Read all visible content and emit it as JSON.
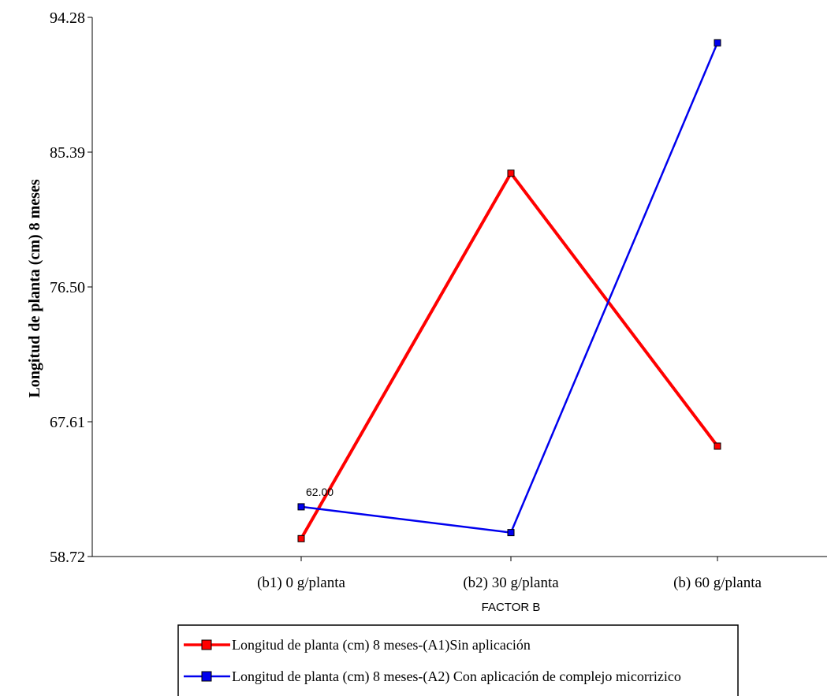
{
  "chart_data": {
    "type": "line",
    "xlabel": "FACTOR B",
    "ylabel": "Longitud de planta (cm) 8 meses",
    "categories": [
      "(b1) 0 g/planta",
      "(b2) 30 g/planta",
      "(b) 60 g/planta"
    ],
    "ylim": [
      58.72,
      94.28
    ],
    "yticks": [
      "94.28",
      "85.39",
      "76.50",
      "67.61",
      "58.72"
    ],
    "grid": false,
    "legend_position": "bottom",
    "series": [
      {
        "name": "Longitud de planta (cm) 8 meses-(A1)Sin aplicación",
        "color": "#ff0000",
        "values": [
          59.9,
          84.0,
          66.0
        ]
      },
      {
        "name": "Longitud de planta (cm) 8 meses-(A2) Con aplicación de complejo micorrizico",
        "color": "#0000ee",
        "values": [
          62.0,
          60.3,
          92.6
        ]
      }
    ],
    "annotations": [
      {
        "series": 1,
        "point": 0,
        "text": "62.00"
      }
    ]
  }
}
